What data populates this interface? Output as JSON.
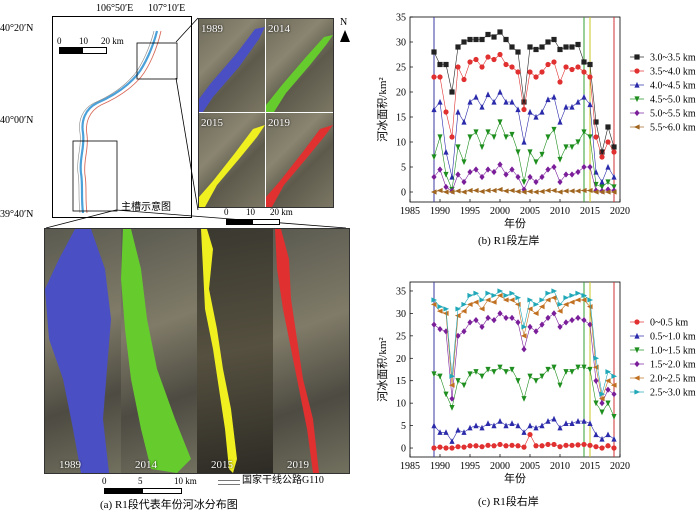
{
  "map": {
    "lon_labels": [
      "106°50′E",
      "107°10′E"
    ],
    "lat_labels": [
      "40°20′N",
      "40°00′N",
      "39°40′N"
    ],
    "north": "N",
    "inset_scale": [
      "0",
      "10",
      "20 km"
    ],
    "inset_caption": "主槽示意图",
    "thumb_years": [
      "1989",
      "2014",
      "2015",
      "2019"
    ],
    "thumb_scale": [
      "0",
      "10",
      "20 km"
    ],
    "big_years": [
      "1989",
      "2014",
      "2015",
      "2019"
    ],
    "big_scale": [
      "0",
      "5",
      "10 km"
    ],
    "legend_road": "国家干线公路G110",
    "caption": "(a) R1段代表年份河冰分布图",
    "colors": {
      "1989": "#4a4fc4",
      "2014": "#66cc2e",
      "2015": "#f0f020",
      "2019": "#e03030"
    }
  },
  "captions": {
    "b": "(b) R1段左岸",
    "c": "(c) R1段右岸"
  },
  "chart_data": [
    {
      "type": "line",
      "xlabel": "年份",
      "ylabel": "河冰面积/km²",
      "xlim": [
        1985,
        2020
      ],
      "ylim": [
        -2,
        35
      ],
      "xticks": [
        1985,
        1990,
        1995,
        2000,
        2005,
        2010,
        2015,
        2020
      ],
      "yticks": [
        0,
        5,
        10,
        15,
        20,
        25,
        30,
        35
      ],
      "vlines": [
        {
          "x": 1989,
          "color": "#3a3aa0"
        },
        {
          "x": 2014,
          "color": "#30a030"
        },
        {
          "x": 2015,
          "color": "#c8c820"
        },
        {
          "x": 2019,
          "color": "#d03030"
        }
      ],
      "legend_position": "right",
      "x": [
        1989,
        1990,
        1991,
        1992,
        1993,
        1994,
        1995,
        1996,
        1997,
        1998,
        1999,
        2000,
        2001,
        2002,
        2003,
        2004,
        2005,
        2006,
        2007,
        2008,
        2009,
        2010,
        2011,
        2012,
        2013,
        2014,
        2015,
        2016,
        2017,
        2018,
        2019
      ],
      "series": [
        {
          "name": "3.0~3.5 km",
          "color": "#222222",
          "marker": "square",
          "values": [
            28,
            25.5,
            25.5,
            20,
            29,
            30,
            30.5,
            30.5,
            30.5,
            31.5,
            31,
            32,
            30.5,
            29,
            28,
            18,
            29,
            28.5,
            29,
            30,
            30.5,
            28.5,
            29,
            29,
            29.5,
            26,
            25.5,
            14,
            8,
            13,
            9
          ]
        },
        {
          "name": "3.5~4.0 km",
          "color": "#e03030",
          "marker": "circle",
          "values": [
            23,
            23,
            16,
            11,
            25,
            22.5,
            26,
            26.5,
            25,
            27,
            26.5,
            27.5,
            25.5,
            25,
            24,
            16.5,
            24,
            23,
            24,
            25.5,
            26,
            22,
            25,
            24.5,
            25,
            24,
            23,
            11,
            7,
            10,
            8
          ]
        },
        {
          "name": "4.0~4.5 km",
          "color": "#2a2aaa",
          "marker": "triangle-up",
          "values": [
            16.5,
            18,
            8,
            3,
            16,
            14,
            18,
            19,
            17,
            19.5,
            18,
            20,
            18,
            18,
            16.5,
            10,
            16,
            15,
            16,
            18.5,
            19,
            14,
            17,
            17,
            18,
            19,
            17.5,
            4,
            2,
            5,
            3
          ]
        },
        {
          "name": "4.5~5.0 km",
          "color": "#1e8e1e",
          "marker": "triangle-down",
          "values": [
            7,
            11,
            3.5,
            0.5,
            9,
            6,
            11,
            12,
            9,
            12,
            11,
            14,
            11,
            11.5,
            8,
            2,
            8,
            6,
            7.5,
            11,
            12.5,
            6.5,
            9,
            9,
            10,
            12,
            11,
            1.5,
            1,
            2,
            1
          ]
        },
        {
          "name": "5.0~5.5 km",
          "color": "#7a1e9a",
          "marker": "diamond",
          "values": [
            3,
            4.5,
            1,
            0.2,
            3.5,
            2,
            4,
            4.5,
            3,
            4.5,
            4,
            5.5,
            3.5,
            4.5,
            3,
            0.5,
            3,
            2,
            3,
            4.5,
            5,
            2,
            3.5,
            3.5,
            4,
            5,
            5,
            0.3,
            0.2,
            0.5,
            0.3
          ]
        },
        {
          "name": "5.5~6.0 km",
          "color": "#a0651e",
          "marker": "triangle-left",
          "values": [
            0,
            0.3,
            0,
            0,
            0.2,
            0,
            0.3,
            0.3,
            0.1,
            0.3,
            0.3,
            0.5,
            0.2,
            0.3,
            0.1,
            0,
            0.1,
            0,
            0.1,
            0.3,
            0.3,
            0,
            0.2,
            0.2,
            0.2,
            0.3,
            0.3,
            0,
            0,
            0,
            0
          ]
        }
      ]
    },
    {
      "type": "line",
      "xlabel": "年份",
      "ylabel": "河冰面积/km²",
      "xlim": [
        1985,
        2020
      ],
      "ylim": [
        -2,
        37
      ],
      "xticks": [
        1985,
        1990,
        1995,
        2000,
        2005,
        2010,
        2015,
        2020
      ],
      "yticks": [
        0,
        5,
        10,
        15,
        20,
        25,
        30,
        35
      ],
      "vlines": [
        {
          "x": 1989,
          "color": "#3a3aa0"
        },
        {
          "x": 2014,
          "color": "#30a030"
        },
        {
          "x": 2015,
          "color": "#c8c820"
        },
        {
          "x": 2019,
          "color": "#d03030"
        }
      ],
      "legend_position": "right",
      "x": [
        1989,
        1990,
        1991,
        1992,
        1993,
        1994,
        1995,
        1996,
        1997,
        1998,
        1999,
        2000,
        2001,
        2002,
        2003,
        2004,
        2005,
        2006,
        2007,
        2008,
        2009,
        2010,
        2011,
        2012,
        2013,
        2014,
        2015,
        2016,
        2017,
        2018,
        2019
      ],
      "series": [
        {
          "name": "0~0.5 km",
          "color": "#e03030",
          "marker": "circle",
          "values": [
            0,
            0.2,
            0,
            0,
            0.3,
            0.2,
            0.5,
            0.5,
            0.3,
            0.6,
            0.5,
            0.8,
            0.5,
            0.6,
            0.5,
            0.2,
            3,
            0.5,
            0.5,
            0.8,
            0.8,
            0.3,
            0.6,
            0.6,
            0.7,
            0.8,
            0.6,
            0.3,
            0,
            0.5,
            0
          ]
        },
        {
          "name": "0.5~1.0 km",
          "color": "#2a2aaa",
          "marker": "triangle-up",
          "values": [
            5,
            3.5,
            3.5,
            1.5,
            4,
            3.5,
            4.5,
            5,
            4.5,
            5.5,
            5,
            6,
            5,
            5.5,
            5,
            3.5,
            5,
            4.5,
            5,
            6,
            6.5,
            4.5,
            5.5,
            5.5,
            6,
            6,
            5.5,
            3,
            2,
            3,
            2
          ]
        },
        {
          "name": "1.0~1.5 km",
          "color": "#1e8e1e",
          "marker": "triangle-down",
          "values": [
            16.5,
            16,
            12,
            9,
            15,
            14,
            16.5,
            17,
            16,
            17.5,
            17,
            18,
            17,
            17.5,
            15,
            11,
            16,
            15,
            16,
            17.5,
            18,
            14,
            17,
            17,
            18,
            18,
            17.5,
            10,
            8,
            10,
            7
          ]
        },
        {
          "name": "1.5~2.0 km",
          "color": "#7a1e9a",
          "marker": "diamond",
          "values": [
            27.5,
            26.5,
            26,
            11,
            25,
            26,
            28,
            28.5,
            27,
            29,
            28.5,
            30,
            29,
            29,
            28,
            22,
            27,
            26,
            27.5,
            29,
            30,
            27,
            28,
            28.5,
            29,
            28.5,
            27.5,
            15,
            10,
            13,
            12
          ]
        },
        {
          "name": "2.0~2.5 km",
          "color": "#c07020",
          "marker": "triangle-left",
          "values": [
            32,
            30.5,
            30,
            14,
            29.5,
            30.5,
            32,
            32.5,
            31,
            33,
            32.5,
            34,
            33,
            33,
            32,
            25,
            31,
            30,
            31.5,
            33,
            33.5,
            30.5,
            32,
            32.5,
            33,
            33,
            31.5,
            18,
            11,
            15,
            14
          ]
        },
        {
          "name": "2.5~3.0 km",
          "color": "#20a8b8",
          "marker": "triangle-right",
          "values": [
            33,
            31.5,
            31,
            16,
            31,
            32,
            34,
            34.5,
            33,
            34.5,
            34,
            35,
            34,
            34.5,
            33.5,
            27,
            33,
            32,
            33,
            34.5,
            35,
            32,
            33.5,
            34,
            34.5,
            34,
            33,
            20,
            12,
            17,
            16
          ]
        }
      ]
    }
  ]
}
